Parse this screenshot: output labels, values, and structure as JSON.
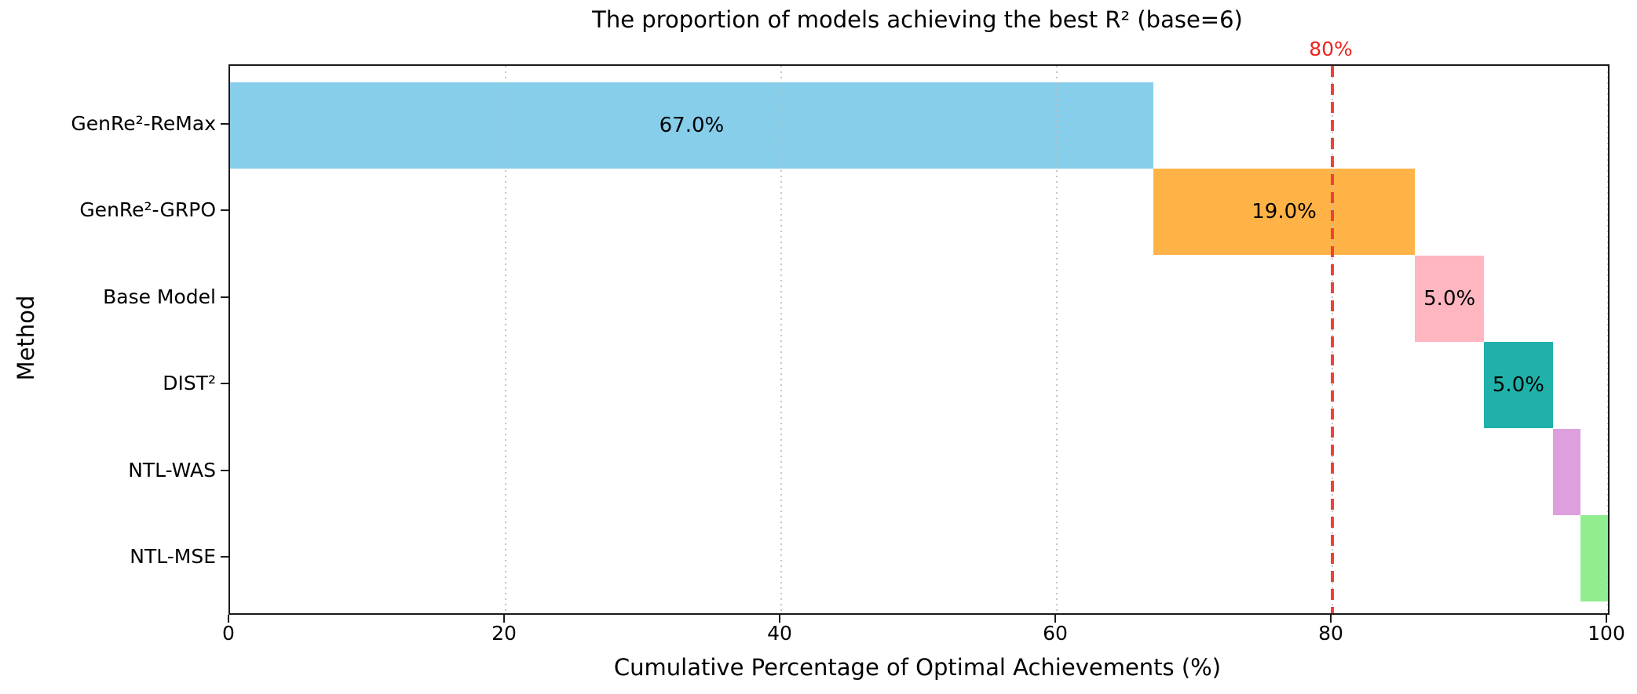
{
  "chart_data": {
    "type": "bar",
    "subtype": "horizontal-waterfall-stacked",
    "title": "The proportion of models achieving the best R² (base=6)",
    "xlabel": "Cumulative Percentage of Optimal Achievements (%)",
    "ylabel": "Method",
    "xlim": [
      0,
      100
    ],
    "xticks": [
      0,
      20,
      40,
      60,
      80,
      100
    ],
    "grid": "vertical-dotted",
    "legend": "none",
    "categories": [
      "GenRe²-ReMax",
      "GenRe²-GRPO",
      "Base Model",
      "DIST²",
      "NTL-WAS",
      "NTL-MSE"
    ],
    "segments": [
      {
        "method": "GenRe²-ReMax",
        "start": 0.0,
        "value": 67.0,
        "label": "67.0%",
        "color": "#87CEEB"
      },
      {
        "method": "GenRe²-GRPO",
        "start": 67.0,
        "value": 19.0,
        "label": "19.0%",
        "color": "#FFB347"
      },
      {
        "method": "Base Model",
        "start": 86.0,
        "value": 5.0,
        "label": "5.0%",
        "color": "#FFB6C1"
      },
      {
        "method": "DIST²",
        "start": 91.0,
        "value": 5.0,
        "label": "5.0%",
        "color": "#20B2AA"
      },
      {
        "method": "NTL-WAS",
        "start": 96.0,
        "value": 2.0,
        "label": "",
        "color": "#DDA0DD"
      },
      {
        "method": "NTL-MSE",
        "start": 98.0,
        "value": 2.0,
        "label": "",
        "color": "#90EE90"
      }
    ],
    "reference_line": {
      "value": 80,
      "label": "80%",
      "style": "dashed",
      "line_color": "#EF4136",
      "text_color": "#E8251C"
    },
    "colors": {
      "spine": "#1a1a1a",
      "grid": "#bbbbbb",
      "bar_label_text": "#000000"
    }
  }
}
